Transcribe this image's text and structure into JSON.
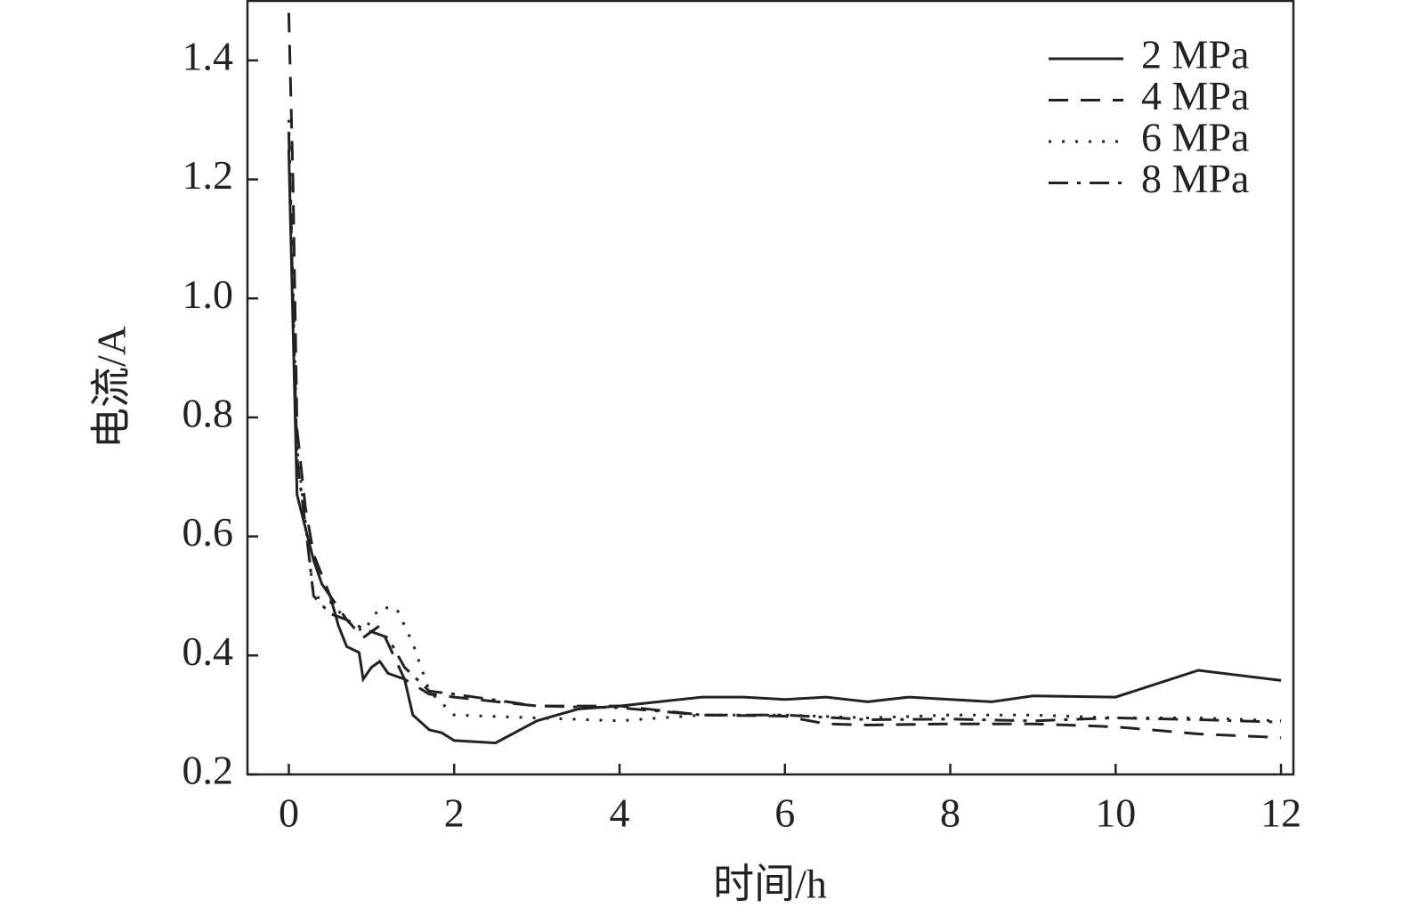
{
  "chart_data": {
    "type": "line",
    "x_label": "时间/h",
    "y_label": "电流/A",
    "xlim": [
      -0.5,
      12.15
    ],
    "ylim": [
      0.2,
      1.5
    ],
    "xticks": [
      0,
      2,
      4,
      6,
      8,
      10,
      12
    ],
    "yticks": [
      0.2,
      0.4,
      0.6,
      0.8,
      {
        "value": 1,
        "label": "1.0"
      },
      1.2,
      1.4
    ],
    "legend": "upper right",
    "series": [
      {
        "name": "2 MPa",
        "color": "#222222",
        "style": "solid",
        "x": [
          0,
          0.1,
          0.3,
          0.4,
          0.5,
          0.6,
          0.7,
          0.85,
          0.9,
          1.0,
          1.1,
          1.2,
          1.4,
          1.5,
          1.7,
          1.85,
          2,
          2.5,
          3,
          3.5,
          4,
          5,
          5.5,
          6,
          6.5,
          7,
          7.5,
          8.5,
          9,
          10,
          11,
          12
        ],
        "values": [
          1.25,
          0.67,
          0.56,
          0.52,
          0.5,
          0.45,
          0.415,
          0.405,
          0.36,
          0.38,
          0.39,
          0.37,
          0.36,
          0.3,
          0.275,
          0.27,
          0.257,
          0.253,
          0.29,
          0.31,
          0.315,
          0.33,
          0.33,
          0.326,
          0.33,
          0.322,
          0.33,
          0.322,
          0.332,
          0.33,
          0.375,
          0.358
        ]
      },
      {
        "name": "4 MPa",
        "color": "#222222",
        "style": "dashed",
        "x": [
          0,
          0.05,
          0.1,
          0.2,
          0.3,
          0.5,
          0.7,
          0.9,
          1.1,
          1.2,
          1.4,
          1.7,
          2,
          3,
          4,
          5,
          6,
          6.5,
          7,
          8,
          9,
          10,
          11,
          12
        ],
        "values": [
          1.48,
          1.2,
          0.78,
          0.65,
          0.57,
          0.5,
          0.46,
          0.43,
          0.45,
          0.42,
          0.36,
          0.335,
          0.33,
          0.315,
          0.315,
          0.3,
          0.298,
          0.285,
          0.283,
          0.285,
          0.285,
          0.28,
          0.268,
          0.262
        ]
      },
      {
        "name": "6 MPa",
        "color": "#222222",
        "style": "dotted",
        "x": [
          0,
          0.1,
          0.3,
          0.5,
          0.7,
          0.9,
          1.0,
          1.1,
          1.3,
          1.5,
          1.7,
          2,
          3,
          4,
          5,
          6,
          7,
          8,
          9,
          10,
          11,
          12
        ],
        "values": [
          1.3,
          0.75,
          0.5,
          0.49,
          0.46,
          0.44,
          0.46,
          0.48,
          0.48,
          0.42,
          0.34,
          0.3,
          0.295,
          0.29,
          0.3,
          0.3,
          0.295,
          0.3,
          0.3,
          0.295,
          0.295,
          0.29
        ]
      },
      {
        "name": "8 MPa",
        "color": "#222222",
        "style": "dashdot",
        "x": [
          0,
          0.1,
          0.2,
          0.3,
          0.5,
          0.7,
          0.9,
          1.0,
          1.2,
          1.4,
          1.7,
          2,
          3,
          4,
          5,
          6,
          7,
          8,
          9,
          10,
          11,
          12
        ],
        "values": [
          1.28,
          0.73,
          0.62,
          0.5,
          0.47,
          0.46,
          0.445,
          0.44,
          0.43,
          0.38,
          0.34,
          0.335,
          0.315,
          0.312,
          0.3,
          0.3,
          0.292,
          0.293,
          0.29,
          0.295,
          0.292,
          0.288
        ]
      }
    ]
  }
}
